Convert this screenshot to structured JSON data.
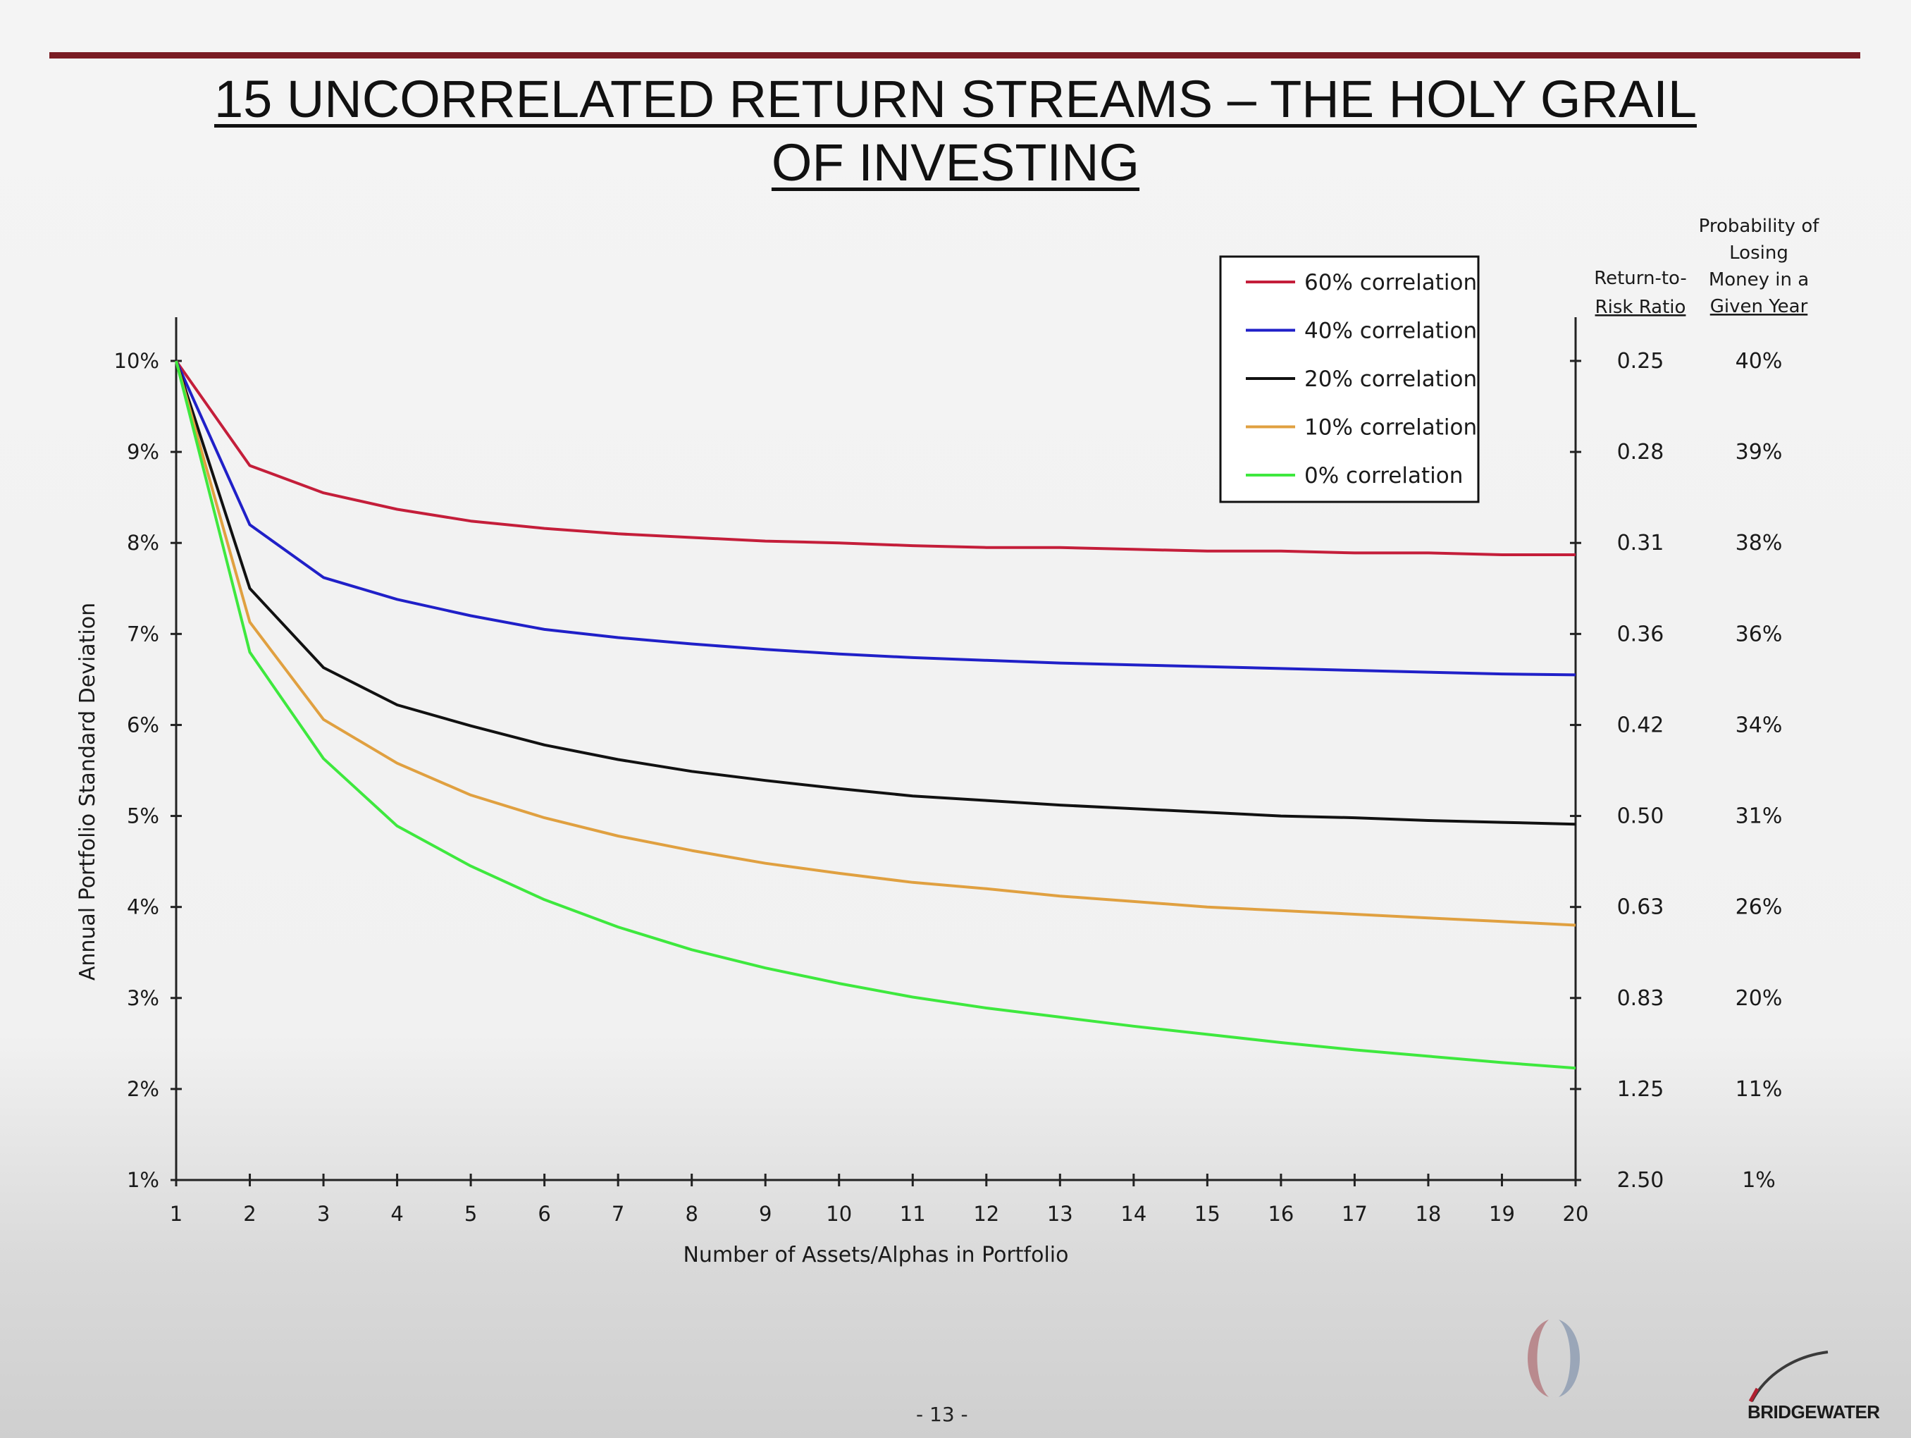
{
  "page": {
    "title_line1": "15 UNCORRELATED RETURN STREAMS – THE HOLY GRAIL",
    "title_line2": "OF INVESTING",
    "page_number": "- 13 -",
    "brand": "BRIDGEWATER"
  },
  "chart_data": {
    "type": "line",
    "xlabel": "Number of Assets/Alphas in Portfolio",
    "ylabel": "Annual Portfolio Standard Deviation",
    "x": [
      1,
      2,
      3,
      4,
      5,
      6,
      7,
      8,
      9,
      10,
      11,
      12,
      13,
      14,
      15,
      16,
      17,
      18,
      19,
      20
    ],
    "xlim": [
      1,
      20
    ],
    "ylim": [
      1,
      10
    ],
    "y_ticks": [
      1,
      2,
      3,
      4,
      5,
      6,
      7,
      8,
      9,
      10
    ],
    "y_tick_labels": [
      "1%",
      "2%",
      "3%",
      "4%",
      "5%",
      "6%",
      "7%",
      "8%",
      "9%",
      "10%"
    ],
    "grid": false,
    "legend_position": "top-right",
    "series": [
      {
        "name": "60% correlation",
        "color": "#c41e3a",
        "values": [
          10.0,
          8.85,
          8.55,
          8.37,
          8.24,
          8.16,
          8.1,
          8.06,
          8.02,
          8.0,
          7.97,
          7.95,
          7.95,
          7.93,
          7.91,
          7.91,
          7.89,
          7.89,
          7.87,
          7.87
        ]
      },
      {
        "name": "40% correlation",
        "color": "#2020c8",
        "values": [
          10.0,
          8.2,
          7.62,
          7.38,
          7.2,
          7.05,
          6.96,
          6.89,
          6.83,
          6.78,
          6.74,
          6.71,
          6.68,
          6.66,
          6.64,
          6.62,
          6.6,
          6.58,
          6.56,
          6.55
        ]
      },
      {
        "name": "20% correlation",
        "color": "#111111",
        "values": [
          10.0,
          7.5,
          6.63,
          6.22,
          5.99,
          5.78,
          5.62,
          5.49,
          5.39,
          5.3,
          5.22,
          5.17,
          5.12,
          5.08,
          5.04,
          5.0,
          4.98,
          4.95,
          4.93,
          4.91
        ]
      },
      {
        "name": "10% correlation",
        "color": "#e0a040",
        "values": [
          10.0,
          7.13,
          6.06,
          5.58,
          5.23,
          4.98,
          4.78,
          4.62,
          4.48,
          4.37,
          4.27,
          4.2,
          4.12,
          4.06,
          4.0,
          3.96,
          3.92,
          3.88,
          3.84,
          3.8
        ]
      },
      {
        "name": "0% correlation",
        "color": "#3ee83e",
        "values": [
          10.0,
          6.8,
          5.63,
          4.89,
          4.45,
          4.08,
          3.78,
          3.53,
          3.33,
          3.16,
          3.01,
          2.89,
          2.79,
          2.69,
          2.6,
          2.51,
          2.43,
          2.36,
          2.29,
          2.23
        ]
      }
    ],
    "right_axis": {
      "header_ratio": [
        "Return-to-",
        "Risk Ratio"
      ],
      "header_prob": [
        "Probability of",
        "Losing",
        "Money in a",
        "Given Year"
      ],
      "rows": [
        {
          "y": 10,
          "ratio": "0.25",
          "prob": "40%"
        },
        {
          "y": 9,
          "ratio": "0.28",
          "prob": "39%"
        },
        {
          "y": 8,
          "ratio": "0.31",
          "prob": "38%"
        },
        {
          "y": 7,
          "ratio": "0.36",
          "prob": "36%"
        },
        {
          "y": 6,
          "ratio": "0.42",
          "prob": "34%"
        },
        {
          "y": 5,
          "ratio": "0.50",
          "prob": "31%"
        },
        {
          "y": 4,
          "ratio": "0.63",
          "prob": "26%"
        },
        {
          "y": 3,
          "ratio": "0.83",
          "prob": "20%"
        },
        {
          "y": 2,
          "ratio": "1.25",
          "prob": "11%"
        },
        {
          "y": 1,
          "ratio": "2.50",
          "prob": "1%"
        }
      ]
    }
  }
}
